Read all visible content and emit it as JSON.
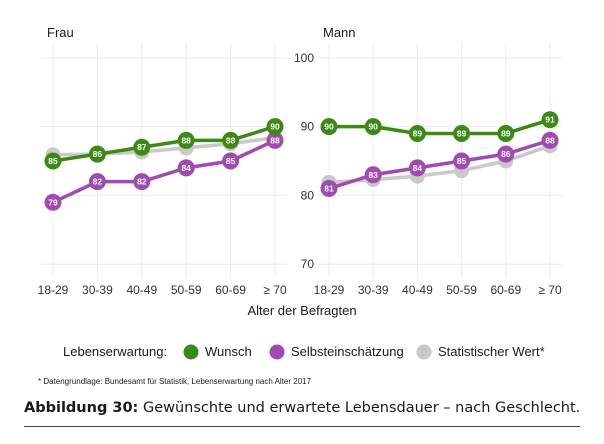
{
  "chart_data": {
    "type": "line",
    "categories": [
      "18-29",
      "30-39",
      "40-49",
      "50-59",
      "60-69",
      "≥ 70"
    ],
    "xlabel": "Alter der Befragten",
    "ylim": [
      68,
      102
    ],
    "yticks": [
      70,
      80,
      90,
      100
    ],
    "grid": true,
    "legend_title": "Lebenserwartung:",
    "legend_position": "bottom",
    "series_meta": [
      {
        "name": "Wunsch",
        "color": "#3c8a16"
      },
      {
        "name": "Selbsteinschätzung",
        "color": "#a04ab2"
      },
      {
        "name": "Statistischer Wert*",
        "color": "#c9c9c9"
      }
    ],
    "panels": [
      {
        "title": "Frau",
        "series": [
          {
            "name": "Wunsch",
            "values": [
              85,
              86,
              87,
              88,
              88,
              90
            ],
            "labels": [
              "85",
              "86",
              "87",
              "88",
              "88",
              "90"
            ]
          },
          {
            "name": "Selbsteinschätzung",
            "values": [
              79,
              82,
              82,
              84,
              85,
              88
            ],
            "labels": [
              "79",
              "82",
              "82",
              "84",
              "85",
              "88"
            ]
          },
          {
            "name": "Statistischer Wert*",
            "values": [
              85.9,
              86,
              86.3,
              86.9,
              87.5,
              88.4
            ]
          }
        ]
      },
      {
        "title": "Mann",
        "series": [
          {
            "name": "Wunsch",
            "values": [
              90,
              90,
              89,
              89,
              89,
              91
            ],
            "labels": [
              "90",
              "90",
              "89",
              "89",
              "89",
              "91"
            ]
          },
          {
            "name": "Selbsteinschätzung",
            "values": [
              81,
              83,
              84,
              85,
              86,
              88
            ],
            "labels": [
              "81",
              "83",
              "84",
              "85",
              "86",
              "88"
            ]
          },
          {
            "name": "Statistischer Wert*",
            "values": [
              81.9,
              82.3,
              82.8,
              83.6,
              85,
              87.2
            ]
          }
        ]
      }
    ]
  },
  "footnote": "* Datengrundlage: Bundesamt für Statistik, Lebenserwartung nach Alter 2017",
  "caption": {
    "label": "Abbildung 30:",
    "text": " Gewünschte und erwartete Lebensdauer – nach Geschlecht."
  }
}
